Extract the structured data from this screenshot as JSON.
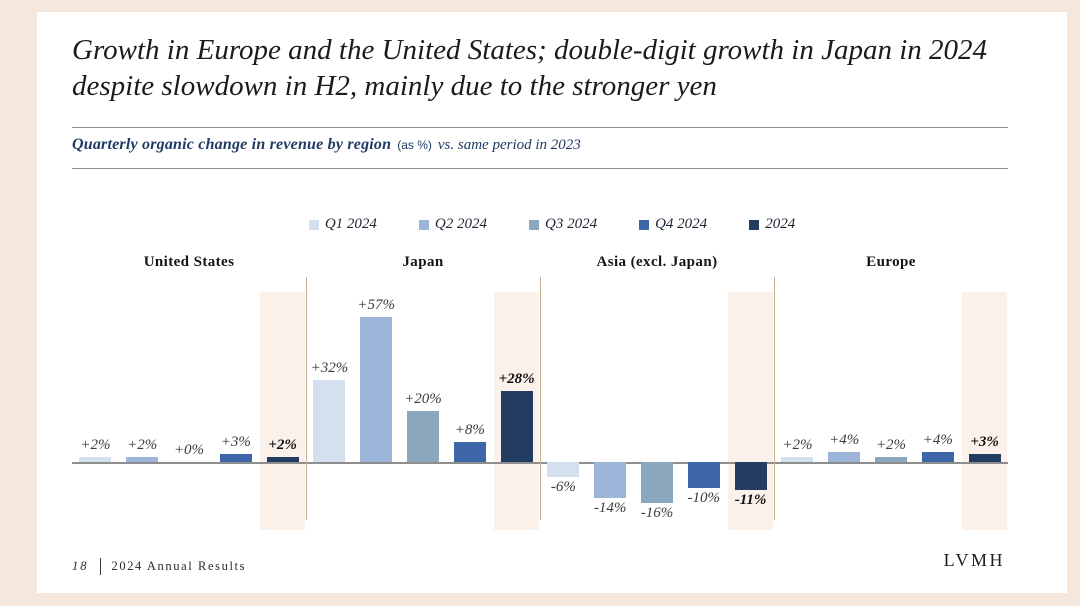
{
  "slide": {
    "title": "Growth in Europe and the United States; double-digit growth in Japan in 2024 despite slowdown in H2, mainly due to the stronger yen",
    "subtitle": {
      "emphasis": "Quarterly organic change in revenue by region",
      "unit": "(as %)",
      "comparison": "vs. same period in 2023"
    },
    "footer": {
      "page_number": "18",
      "label": "2024 Annual Results",
      "brand": "LVMH"
    }
  },
  "colors": {
    "frame": "#f6e7dc",
    "card": "#ffffff",
    "subtitle_navy": "#1f3a64",
    "highlight_band": "#faf1ea",
    "region_divider": "#c3af92",
    "axis_line": "#8e8e8e"
  },
  "chart_data": {
    "type": "bar",
    "title": "Quarterly organic change in revenue by region (as %) vs. same period in 2023",
    "categories": [
      "United States",
      "Japan",
      "Asia (excl. Japan)",
      "Europe"
    ],
    "series": [
      {
        "name": "Q1 2024",
        "color": "#d5e0ee",
        "values": [
          2,
          32,
          -6,
          2
        ],
        "labels": [
          "+2%",
          "+32%",
          "-6%",
          "+2%"
        ]
      },
      {
        "name": "Q2 2024",
        "color": "#9db5d8",
        "values": [
          2,
          57,
          -14,
          4
        ],
        "labels": [
          "+2%",
          "+57%",
          "-14%",
          "+4%"
        ]
      },
      {
        "name": "Q3 2024",
        "color": "#8aa7bd",
        "values": [
          0,
          20,
          -16,
          2
        ],
        "labels": [
          "+0%",
          "+20%",
          "-16%",
          "+2%"
        ]
      },
      {
        "name": "Q4 2024",
        "color": "#3f66a7",
        "values": [
          3,
          8,
          -10,
          4
        ],
        "labels": [
          "+3%",
          "+8%",
          "-10%",
          "+4%"
        ]
      },
      {
        "name": "2024",
        "color": "#233d60",
        "values": [
          2,
          28,
          -11,
          3
        ],
        "labels": [
          "+2%",
          "+28%",
          "-11%",
          "+3%"
        ],
        "emphasis": true
      }
    ],
    "unit": "%",
    "baseline": 0,
    "ylim": [
      -20,
      60
    ],
    "grid": false,
    "legend_position": "top",
    "value_labels": true,
    "highlight_series": "2024"
  }
}
